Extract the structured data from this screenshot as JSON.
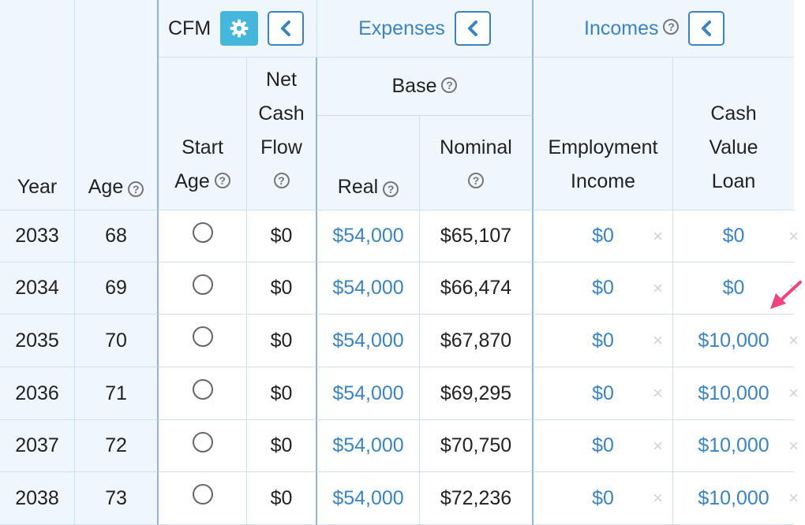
{
  "header": {
    "year": "Year",
    "age": "Age",
    "cfm": "CFM",
    "start_age": [
      "Start",
      "Age"
    ],
    "net_cash_flow": [
      "Net",
      "Cash",
      "Flow"
    ],
    "expenses": "Expenses",
    "base": "Base",
    "real": "Real",
    "nominal": [
      "Nominal"
    ],
    "incomes": "Incomes",
    "employment_income": [
      "Employment",
      "Income"
    ],
    "cash_value_loan": [
      "Cash",
      "Value",
      "Loan"
    ]
  },
  "icons": {
    "help": "?",
    "close": "×",
    "gear_color": "#45b7dd",
    "accent": "#3b84c4",
    "annotation_arrow_color": "#f0447e"
  },
  "rows": [
    {
      "year": "2033",
      "age": "68",
      "net": "$0",
      "real": "$54,000",
      "nominal": "$65,107",
      "employment": "$0",
      "loan": "$0"
    },
    {
      "year": "2034",
      "age": "69",
      "net": "$0",
      "real": "$54,000",
      "nominal": "$66,474",
      "employment": "$0",
      "loan": "$0"
    },
    {
      "year": "2035",
      "age": "70",
      "net": "$0",
      "real": "$54,000",
      "nominal": "$67,870",
      "employment": "$0",
      "loan": "$10,000"
    },
    {
      "year": "2036",
      "age": "71",
      "net": "$0",
      "real": "$54,000",
      "nominal": "$69,295",
      "employment": "$0",
      "loan": "$10,000"
    },
    {
      "year": "2037",
      "age": "72",
      "net": "$0",
      "real": "$54,000",
      "nominal": "$70,750",
      "employment": "$0",
      "loan": "$10,000"
    },
    {
      "year": "2038",
      "age": "73",
      "net": "$0",
      "real": "$54,000",
      "nominal": "$72,236",
      "employment": "$0",
      "loan": "$10,000"
    }
  ]
}
